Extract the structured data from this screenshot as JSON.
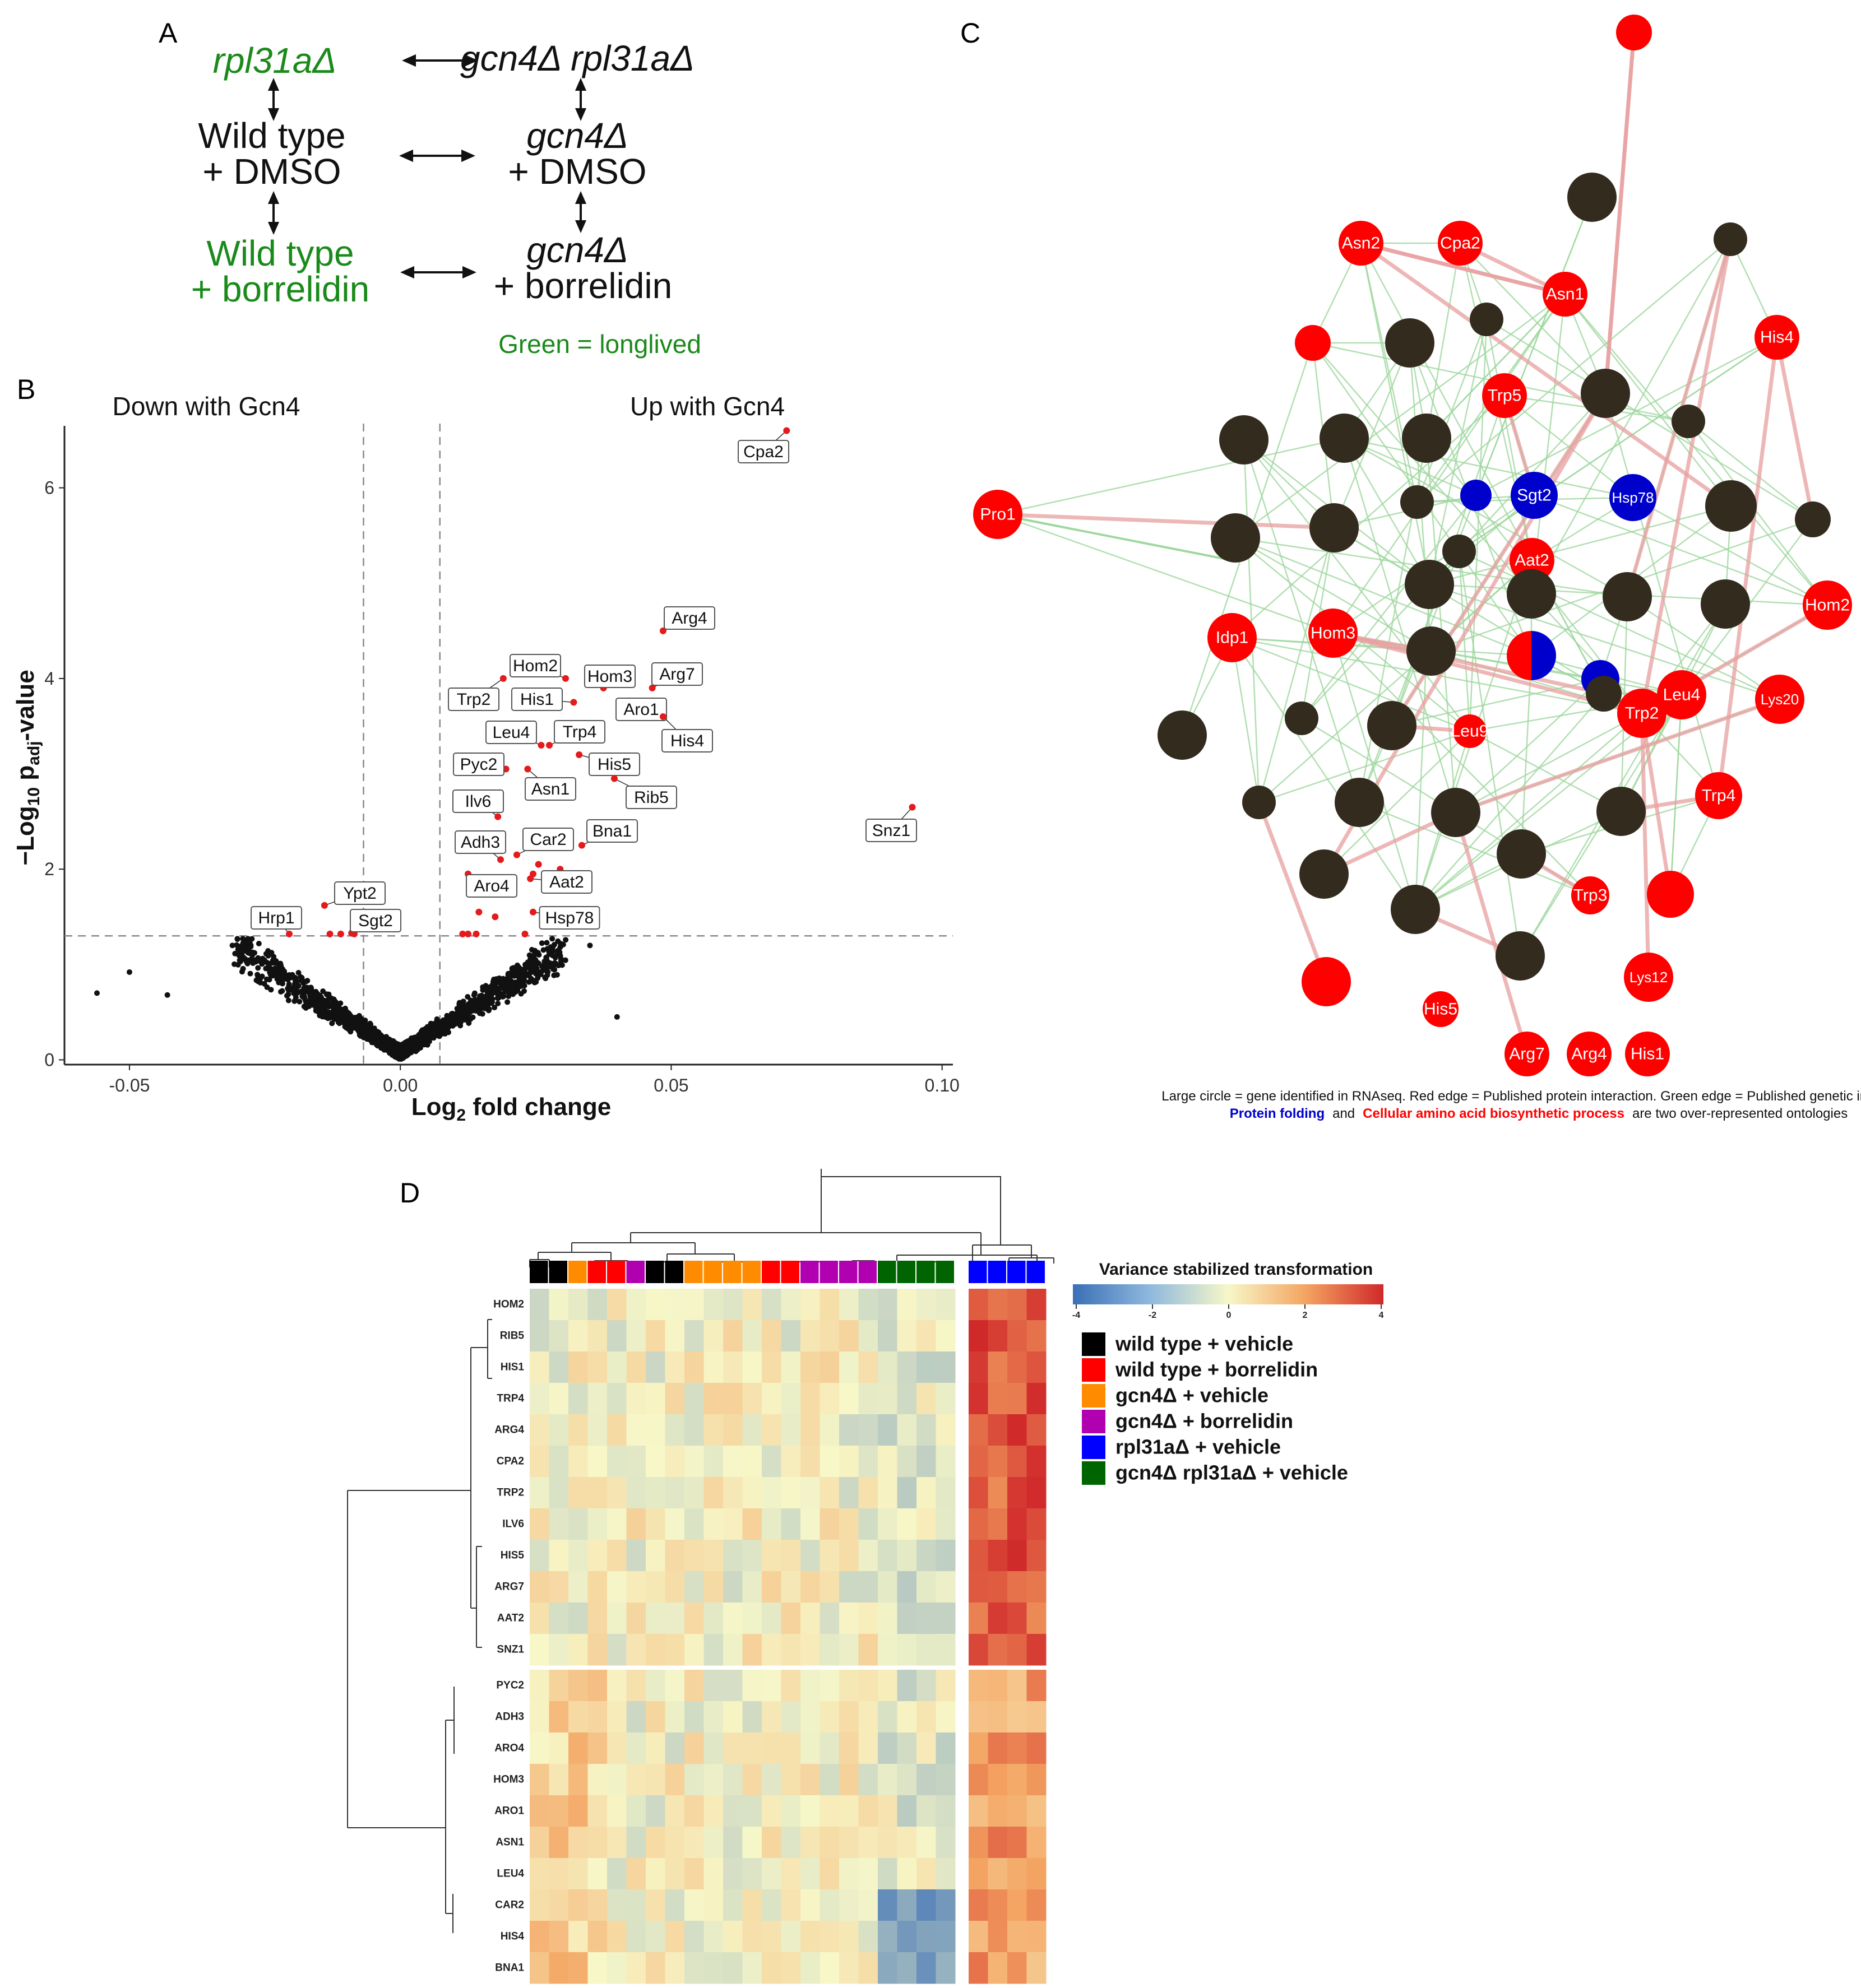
{
  "panels": {
    "a": "A",
    "b": "B",
    "c": "C",
    "d": "D"
  },
  "schematic": {
    "rpl31a": "rpl31aΔ",
    "gcn4_rpl31a": "gcn4Δ rpl31aΔ",
    "wt_dmso_1": "Wild type",
    "wt_dmso_2": "+ DMSO",
    "gcn4_dmso_1": "gcn4Δ",
    "gcn4_dmso_2": "+ DMSO",
    "wt_bor_1": "Wild type",
    "wt_bor_2": "+ borrelidin",
    "gcn4_bor_1": "gcn4Δ",
    "gcn4_bor_2": "+ borrelidin",
    "legend": "Green = longlived",
    "colors": {
      "longlived": "#1a8a1a",
      "normal": "#111111"
    }
  },
  "volcano": {
    "chart_data": {
      "type": "scatter",
      "title_left": "Down with Gcn4",
      "title_right": "Up with Gcn4",
      "xlabel": "Log2 fold change",
      "ylabel": "−Log10 padj-value",
      "xlim": [
        -0.062,
        0.102
      ],
      "ylim": [
        -0.05,
        6.65
      ],
      "xticks": [
        "-0.05",
        "0.00",
        "0.05",
        "0.10"
      ],
      "yticks": [
        "0",
        "2",
        "4",
        "6"
      ],
      "thresholds": {
        "x": [
          -0.0068,
          0.0073
        ],
        "y": 1.3
      },
      "significant_color": "#e41a1c",
      "labeled_points": [
        {
          "label": "Cpa2",
          "x": 0.0713,
          "y": 6.6
        },
        {
          "label": "Arg4",
          "x": 0.0485,
          "y": 4.5
        },
        {
          "label": "Arg7",
          "x": 0.0465,
          "y": 3.9
        },
        {
          "label": "Hom3",
          "x": 0.0375,
          "y": 3.9
        },
        {
          "label": "Hom2",
          "x": 0.0305,
          "y": 4.0
        },
        {
          "label": "Aro1",
          "x": 0.048,
          "y": 3.6
        },
        {
          "label": "His4",
          "x": 0.0485,
          "y": 3.6
        },
        {
          "label": "His1",
          "x": 0.032,
          "y": 3.75
        },
        {
          "label": "Trp2",
          "x": 0.019,
          "y": 4.0
        },
        {
          "label": "Trp4",
          "x": 0.0275,
          "y": 3.3
        },
        {
          "label": "Leu4",
          "x": 0.026,
          "y": 3.3
        },
        {
          "label": "His5",
          "x": 0.033,
          "y": 3.2
        },
        {
          "label": "Pyc2",
          "x": 0.0195,
          "y": 3.05
        },
        {
          "label": "Asn1",
          "x": 0.0235,
          "y": 3.05
        },
        {
          "label": "Rib5",
          "x": 0.0395,
          "y": 2.95
        },
        {
          "label": "Ilv6",
          "x": 0.018,
          "y": 2.55
        },
        {
          "label": "Snz1",
          "x": 0.0945,
          "y": 2.65
        },
        {
          "label": "Bna1",
          "x": 0.0335,
          "y": 2.25
        },
        {
          "label": "Car2",
          "x": 0.0215,
          "y": 2.15
        },
        {
          "label": "Adh3",
          "x": 0.0185,
          "y": 2.1
        },
        {
          "label": "Aat2",
          "x": 0.024,
          "y": 1.9
        },
        {
          "label": "Aro4",
          "x": 0.0125,
          "y": 1.95
        },
        {
          "label": "Hsp78",
          "x": 0.0245,
          "y": 1.55
        },
        {
          "label": "Hrp1",
          "x": -0.0205,
          "y": 1.32
        },
        {
          "label": "Ypt2",
          "x": -0.014,
          "y": 1.62
        },
        {
          "label": "Sgt2",
          "x": -0.0085,
          "y": 1.32
        }
      ],
      "extra_significant": [
        {
          "x": 0.0115,
          "y": 1.32
        },
        {
          "x": 0.0125,
          "y": 1.32
        },
        {
          "x": 0.014,
          "y": 1.32
        },
        {
          "x": 0.0145,
          "y": 1.55
        },
        {
          "x": 0.0175,
          "y": 1.5
        },
        {
          "x": 0.021,
          "y": 1.9
        },
        {
          "x": 0.023,
          "y": 1.32
        },
        {
          "x": 0.0245,
          "y": 1.95
        },
        {
          "x": 0.0255,
          "y": 2.05
        },
        {
          "x": 0.0295,
          "y": 2.0
        },
        {
          "x": -0.013,
          "y": 1.32
        },
        {
          "x": -0.011,
          "y": 1.32
        },
        {
          "x": -0.009,
          "y": 1.33
        }
      ]
    }
  },
  "network": {
    "nodes": [
      {
        "label": "",
        "color": "#ff0000"
      },
      {
        "label": "",
        "color": "#332b1e"
      },
      {
        "label": "Asn2",
        "color": "#ff0000"
      },
      {
        "label": "Cpa2",
        "color": "#ff0000"
      },
      {
        "label": "",
        "color": "#332b1e"
      },
      {
        "label": "Asn1",
        "color": "#ff0000"
      },
      {
        "label": "",
        "color": "#332b1e"
      },
      {
        "label": "His4",
        "color": "#ff0000"
      },
      {
        "label": "",
        "color": "#ff0000"
      },
      {
        "label": "",
        "color": "#332b1e"
      },
      {
        "label": "Trp5",
        "color": "#ff0000"
      },
      {
        "label": "",
        "color": "#332b1e"
      },
      {
        "label": "",
        "color": "#332b1e"
      },
      {
        "label": "",
        "color": "#332b1e"
      },
      {
        "label": "",
        "color": "#332b1e"
      },
      {
        "label": "",
        "color": "#332b1e"
      },
      {
        "label": "Pro1",
        "color": "#ff0000"
      },
      {
        "label": "",
        "color": "#0000cc"
      },
      {
        "label": "Sgt2",
        "color": "#0000cc"
      },
      {
        "label": "Hsp78",
        "color": "#0000cc"
      },
      {
        "label": "",
        "color": "#332b1e"
      },
      {
        "label": "",
        "color": "#332b1e"
      },
      {
        "label": "",
        "color": "#332b1e"
      },
      {
        "label": "",
        "color": "#332b1e"
      },
      {
        "label": "",
        "color": "#332b1e"
      },
      {
        "label": "Aat2",
        "color": "#ff0000"
      },
      {
        "label": "",
        "color": "#332b1e"
      },
      {
        "label": "",
        "color": "#332b1e"
      },
      {
        "label": "",
        "color": "#332b1e"
      },
      {
        "label": "",
        "color": "#332b1e"
      },
      {
        "label": "Idp1",
        "color": "#ff0000"
      },
      {
        "label": "",
        "color": "#332b1e"
      },
      {
        "label": "Hom3",
        "color": "#ff0000"
      },
      {
        "label": "",
        "color": "#332b1e"
      },
      {
        "label": "",
        "color": "split"
      },
      {
        "label": "",
        "color": "#0000cc"
      },
      {
        "label": "Hom2",
        "color": "#ff0000"
      },
      {
        "label": "Leu4",
        "color": "#ff0000"
      },
      {
        "label": "",
        "color": "#332b1e"
      },
      {
        "label": "",
        "color": "#332b1e"
      },
      {
        "label": "Lys20",
        "color": "#ff0000"
      },
      {
        "label": "",
        "color": "#332b1e"
      },
      {
        "label": "Trp2",
        "color": "#ff0000"
      },
      {
        "label": "Leu9",
        "color": "#ff0000"
      },
      {
        "label": "",
        "color": "#332b1e"
      },
      {
        "label": "",
        "color": "#332b1e"
      },
      {
        "label": "",
        "color": "#332b1e"
      },
      {
        "label": "",
        "color": "#332b1e"
      },
      {
        "label": "Trp4",
        "color": "#ff0000"
      },
      {
        "label": "",
        "color": "#332b1e"
      },
      {
        "label": "",
        "color": "#332b1e"
      },
      {
        "label": "",
        "color": "#ff0000"
      },
      {
        "label": "Trp3",
        "color": "#ff0000"
      },
      {
        "label": "",
        "color": "#332b1e"
      },
      {
        "label": "",
        "color": "#332b1e"
      },
      {
        "label": "Lys12",
        "color": "#ff0000"
      },
      {
        "label": "",
        "color": "#332b1e"
      },
      {
        "label": "",
        "color": "#ff0000"
      },
      {
        "label": "His5",
        "color": "#ff0000"
      },
      {
        "label": "Arg7",
        "color": "#ff0000"
      },
      {
        "label": "Arg4",
        "color": "#ff0000"
      },
      {
        "label": "His1",
        "color": "#ff0000"
      }
    ],
    "caption_line1": "Large circle = gene identified in RNAseq. Red edge = Published protein interaction. Green edge = Published genetic interation.",
    "caption_blue": "Protein folding",
    "caption_and": "and",
    "caption_red": "Cellular amino acid biosynthetic process",
    "caption_end": "are two over-represented ontologies",
    "colors": {
      "protein_folding": "#0000cc",
      "amino_acid": "#ff0000",
      "edge_red": "#e8a0a0",
      "edge_green": "#9fd89f"
    }
  },
  "heatmap": {
    "scale_title": "Variance stabilized transformation",
    "scale_ticks": [
      "-4",
      "-2",
      "0",
      "2",
      "4"
    ],
    "rows_top": [
      "HOM2",
      "RIB5",
      "HIS1",
      "TRP4",
      "ARG4",
      "CPA2",
      "TRP2",
      "ILV6",
      "HIS5",
      "ARG7",
      "AAT2",
      "SNZ1"
    ],
    "rows_bottom": [
      "PYC2",
      "ADH3",
      "ARO4",
      "HOM3",
      "ARO1",
      "ASN1",
      "LEU4",
      "CAR2",
      "HIS4",
      "BNA1"
    ],
    "column_groups": [
      "black",
      "black",
      "orange",
      "red",
      "red",
      "purple",
      "black",
      "black",
      "orange",
      "orange",
      "orange",
      "orange",
      "red",
      "red",
      "purple",
      "purple",
      "purple",
      "purple",
      "green",
      "green",
      "green",
      "green",
      "blue",
      "blue",
      "blue",
      "blue"
    ],
    "legend": [
      {
        "label": "wild type + vehicle",
        "color": "#000000"
      },
      {
        "label": "wild type + borrelidin",
        "color": "#ff0000"
      },
      {
        "label": "gcn4Δ + vehicle",
        "color": "#ff8c00"
      },
      {
        "label": "gcn4Δ + borrelidin",
        "color": "#b000b0"
      },
      {
        "label": "rpl31aΔ + vehicle",
        "color": "#0000ff"
      },
      {
        "label": "gcn4Δ rpl31aΔ + vehicle",
        "color": "#006400"
      }
    ],
    "group_colors": {
      "black": "#000000",
      "red": "#ff0000",
      "orange": "#ff8c00",
      "purple": "#b000b0",
      "green": "#006400",
      "blue": "#0000ff"
    }
  }
}
